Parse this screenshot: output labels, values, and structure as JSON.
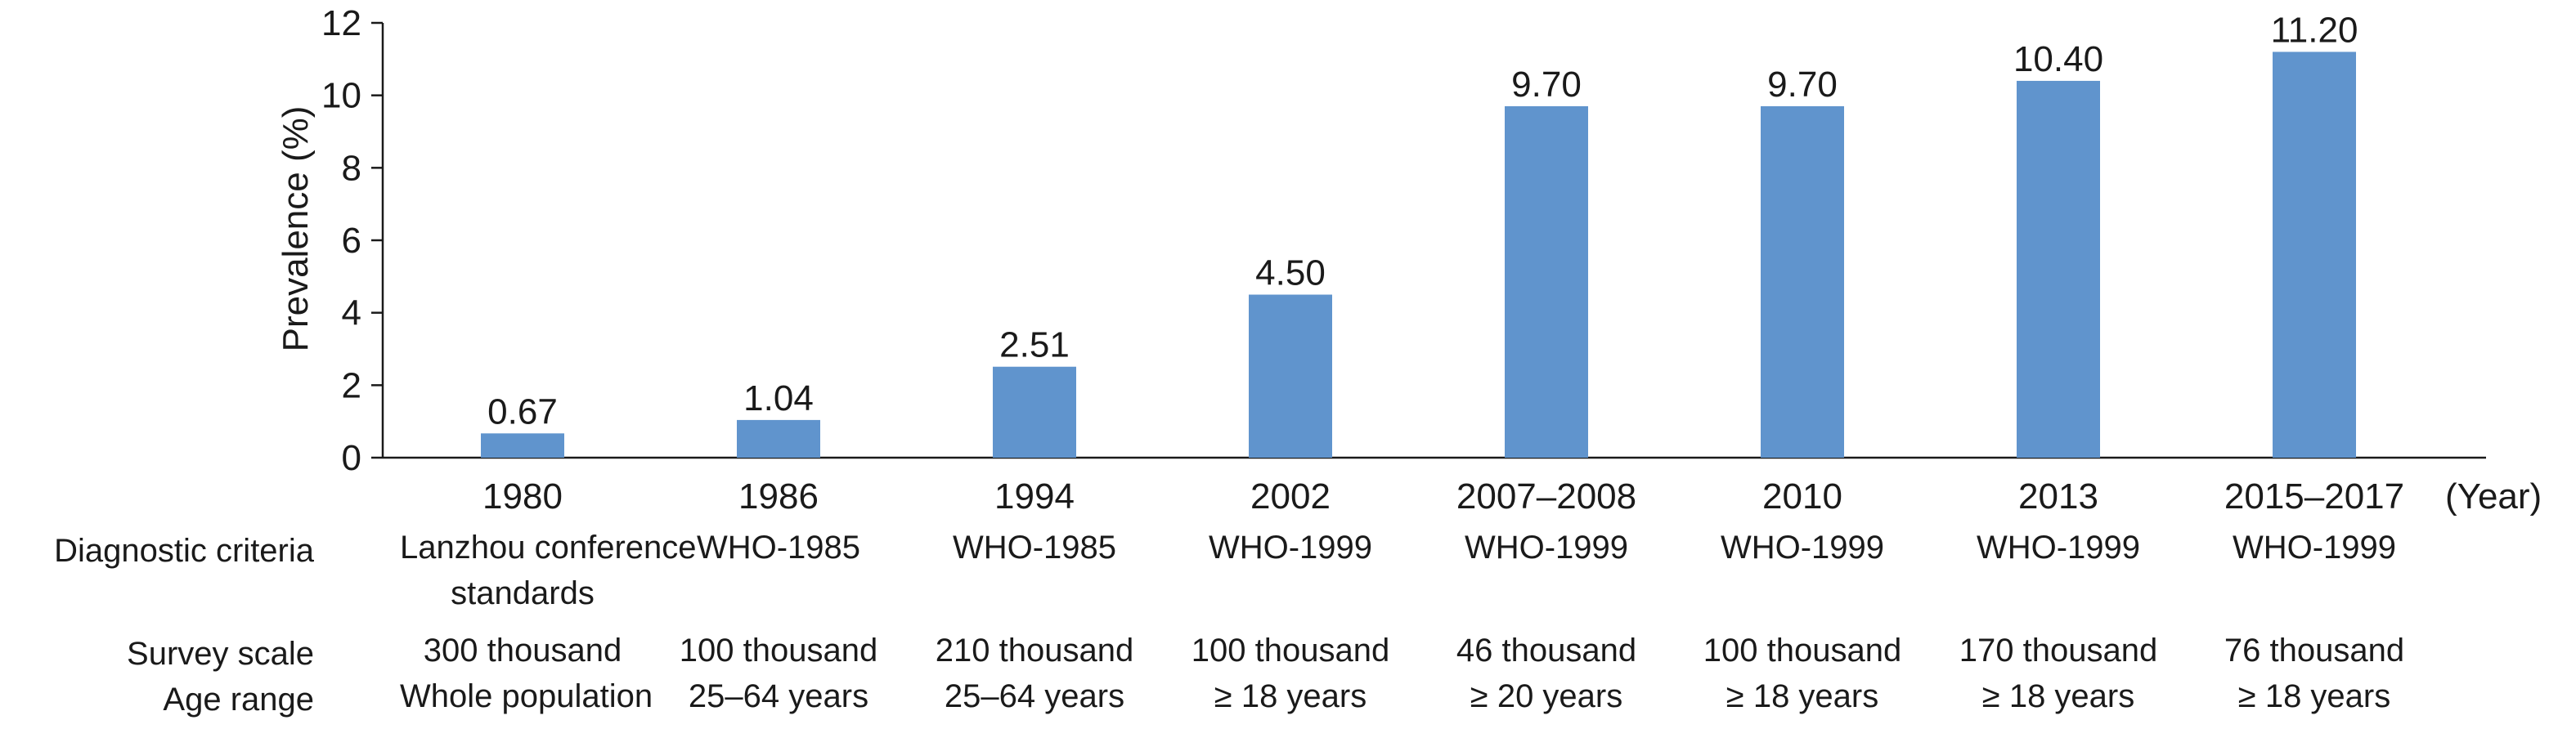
{
  "chart_data": {
    "type": "bar",
    "categories": [
      "1980",
      "1986",
      "1994",
      "2002",
      "2007–2008",
      "2010",
      "2013",
      "2015–2017"
    ],
    "values": [
      0.67,
      1.04,
      2.51,
      4.5,
      9.7,
      9.7,
      10.4,
      11.2
    ],
    "value_labels": [
      "0.67",
      "1.04",
      "2.51",
      "4.50",
      "9.70",
      "9.70",
      "10.40",
      "11.20"
    ],
    "ylabel": "Prevalence (%)",
    "xunit": "(Year)",
    "ylim": [
      0,
      12
    ],
    "yticks": [
      "0",
      "2",
      "4",
      "6",
      "8",
      "10",
      "12"
    ],
    "bar_color": "#6094cd",
    "grid": false,
    "legend": "none"
  },
  "table": {
    "rows": [
      {
        "label": "Diagnostic criteria",
        "cells": [
          [
            "Lanzhou conference",
            "standards"
          ],
          [
            "WHO-1985"
          ],
          [
            "WHO-1985"
          ],
          [
            "WHO-1999"
          ],
          [
            "WHO-1999"
          ],
          [
            "WHO-1999"
          ],
          [
            "WHO-1999"
          ],
          [
            "WHO-1999"
          ]
        ]
      },
      {
        "label": "Survey scale",
        "cells": [
          [
            "300 thousand"
          ],
          [
            "100 thousand"
          ],
          [
            "210 thousand"
          ],
          [
            "100 thousand"
          ],
          [
            "46 thousand"
          ],
          [
            "100 thousand"
          ],
          [
            "170 thousand"
          ],
          [
            "76 thousand"
          ]
        ]
      },
      {
        "label": "Age range",
        "cells": [
          [
            "Whole population"
          ],
          [
            "25–64 years"
          ],
          [
            "25–64 years"
          ],
          [
            "≥ 18 years"
          ],
          [
            "≥ 20 years"
          ],
          [
            "≥ 18 years"
          ],
          [
            "≥ 18 years"
          ],
          [
            "≥ 18 years"
          ]
        ]
      }
    ]
  }
}
